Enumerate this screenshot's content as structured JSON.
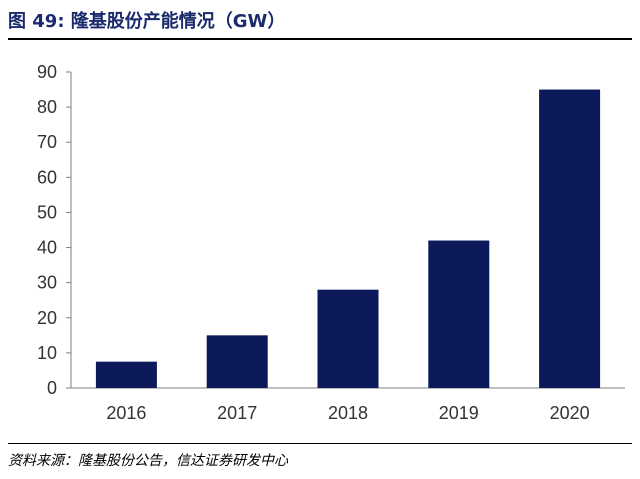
{
  "header": {
    "title": "图 49:  隆基股份产能情况（GW）"
  },
  "footer": {
    "source": "资料来源：隆基股份公告，信达证券研发中心"
  },
  "colors": {
    "bar": "#0c1a5c",
    "axis": "#7f7f7f",
    "title": "#1a2a6c",
    "text": "#333333"
  },
  "chart_data": {
    "type": "bar",
    "title": "图 49:  隆基股份产能情况（GW）",
    "categories": [
      "2016",
      "2017",
      "2018",
      "2019",
      "2020"
    ],
    "values": [
      7.5,
      15,
      28,
      42,
      85
    ],
    "yticks": [
      "0",
      "10",
      "20",
      "30",
      "40",
      "50",
      "60",
      "70",
      "80",
      "90"
    ],
    "ylim": [
      0,
      90
    ],
    "grid": false,
    "legend": "none"
  }
}
